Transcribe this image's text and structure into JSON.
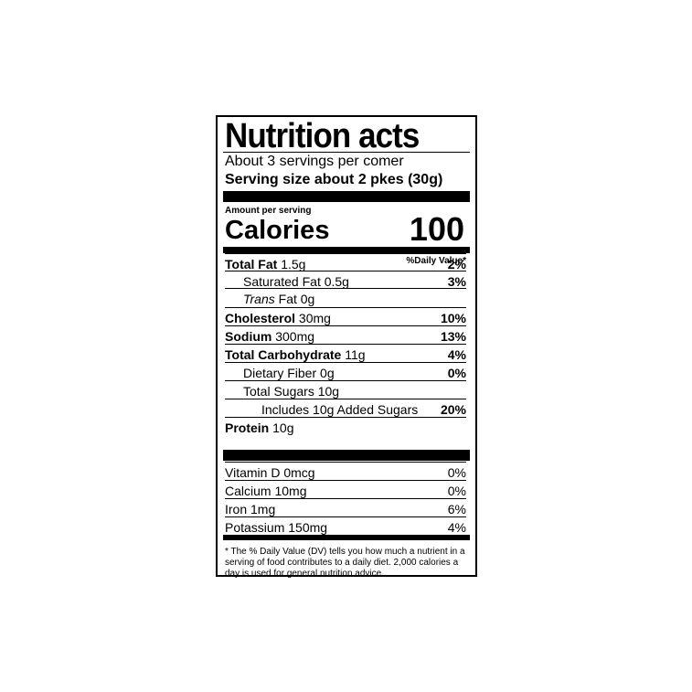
{
  "header": {
    "title": "Nutrition acts",
    "servings": "About 3 servings per comer",
    "serving_size": "Serving size about 2 pkes (30g)"
  },
  "calories": {
    "heading": "Amount per serving",
    "label": "Calories",
    "value": "100"
  },
  "dv_header": "%Daily Value*",
  "nutrients": [
    {
      "name": "Total Fat",
      "amount": "1.5g",
      "dv": "2%"
    },
    {
      "name": "Saturated Fat",
      "amount": "0.5g",
      "dv": "3%"
    },
    {
      "name": "Trans",
      "amount": "Fat 0g"
    },
    {
      "name": "Cholesterol",
      "amount": "30mg",
      "dv": "10%"
    },
    {
      "name": "Sodium",
      "amount": "300mg",
      "dv": "13%"
    },
    {
      "name": "Total Carbohydrate",
      "amount": "11g",
      "dv": "4%"
    },
    {
      "name": "Dietary Fiber",
      "amount": "0g",
      "dv": "0%"
    },
    {
      "name": "Total Sugars",
      "amount": "10g"
    },
    {
      "name": "Includes 10g Added Sugars",
      "dv": "20%"
    },
    {
      "name": "Protein",
      "amount": "10g"
    }
  ],
  "vitamins": [
    {
      "name": "Vitamin D",
      "amount": "0mcg",
      "dv": "0%"
    },
    {
      "name": "Calcium",
      "amount": "10mg",
      "dv": "0%"
    },
    {
      "name": "Iron",
      "amount": "1mg",
      "dv": "6%"
    },
    {
      "name": "Potassium",
      "amount": "150mg",
      "dv": "4%"
    }
  ],
  "footnote": "* The % Daily Value (DV) tells you how much a nutrient in a serving of food contributes to a daily diet. 2,000 calories a day is used for general nutrition advice."
}
